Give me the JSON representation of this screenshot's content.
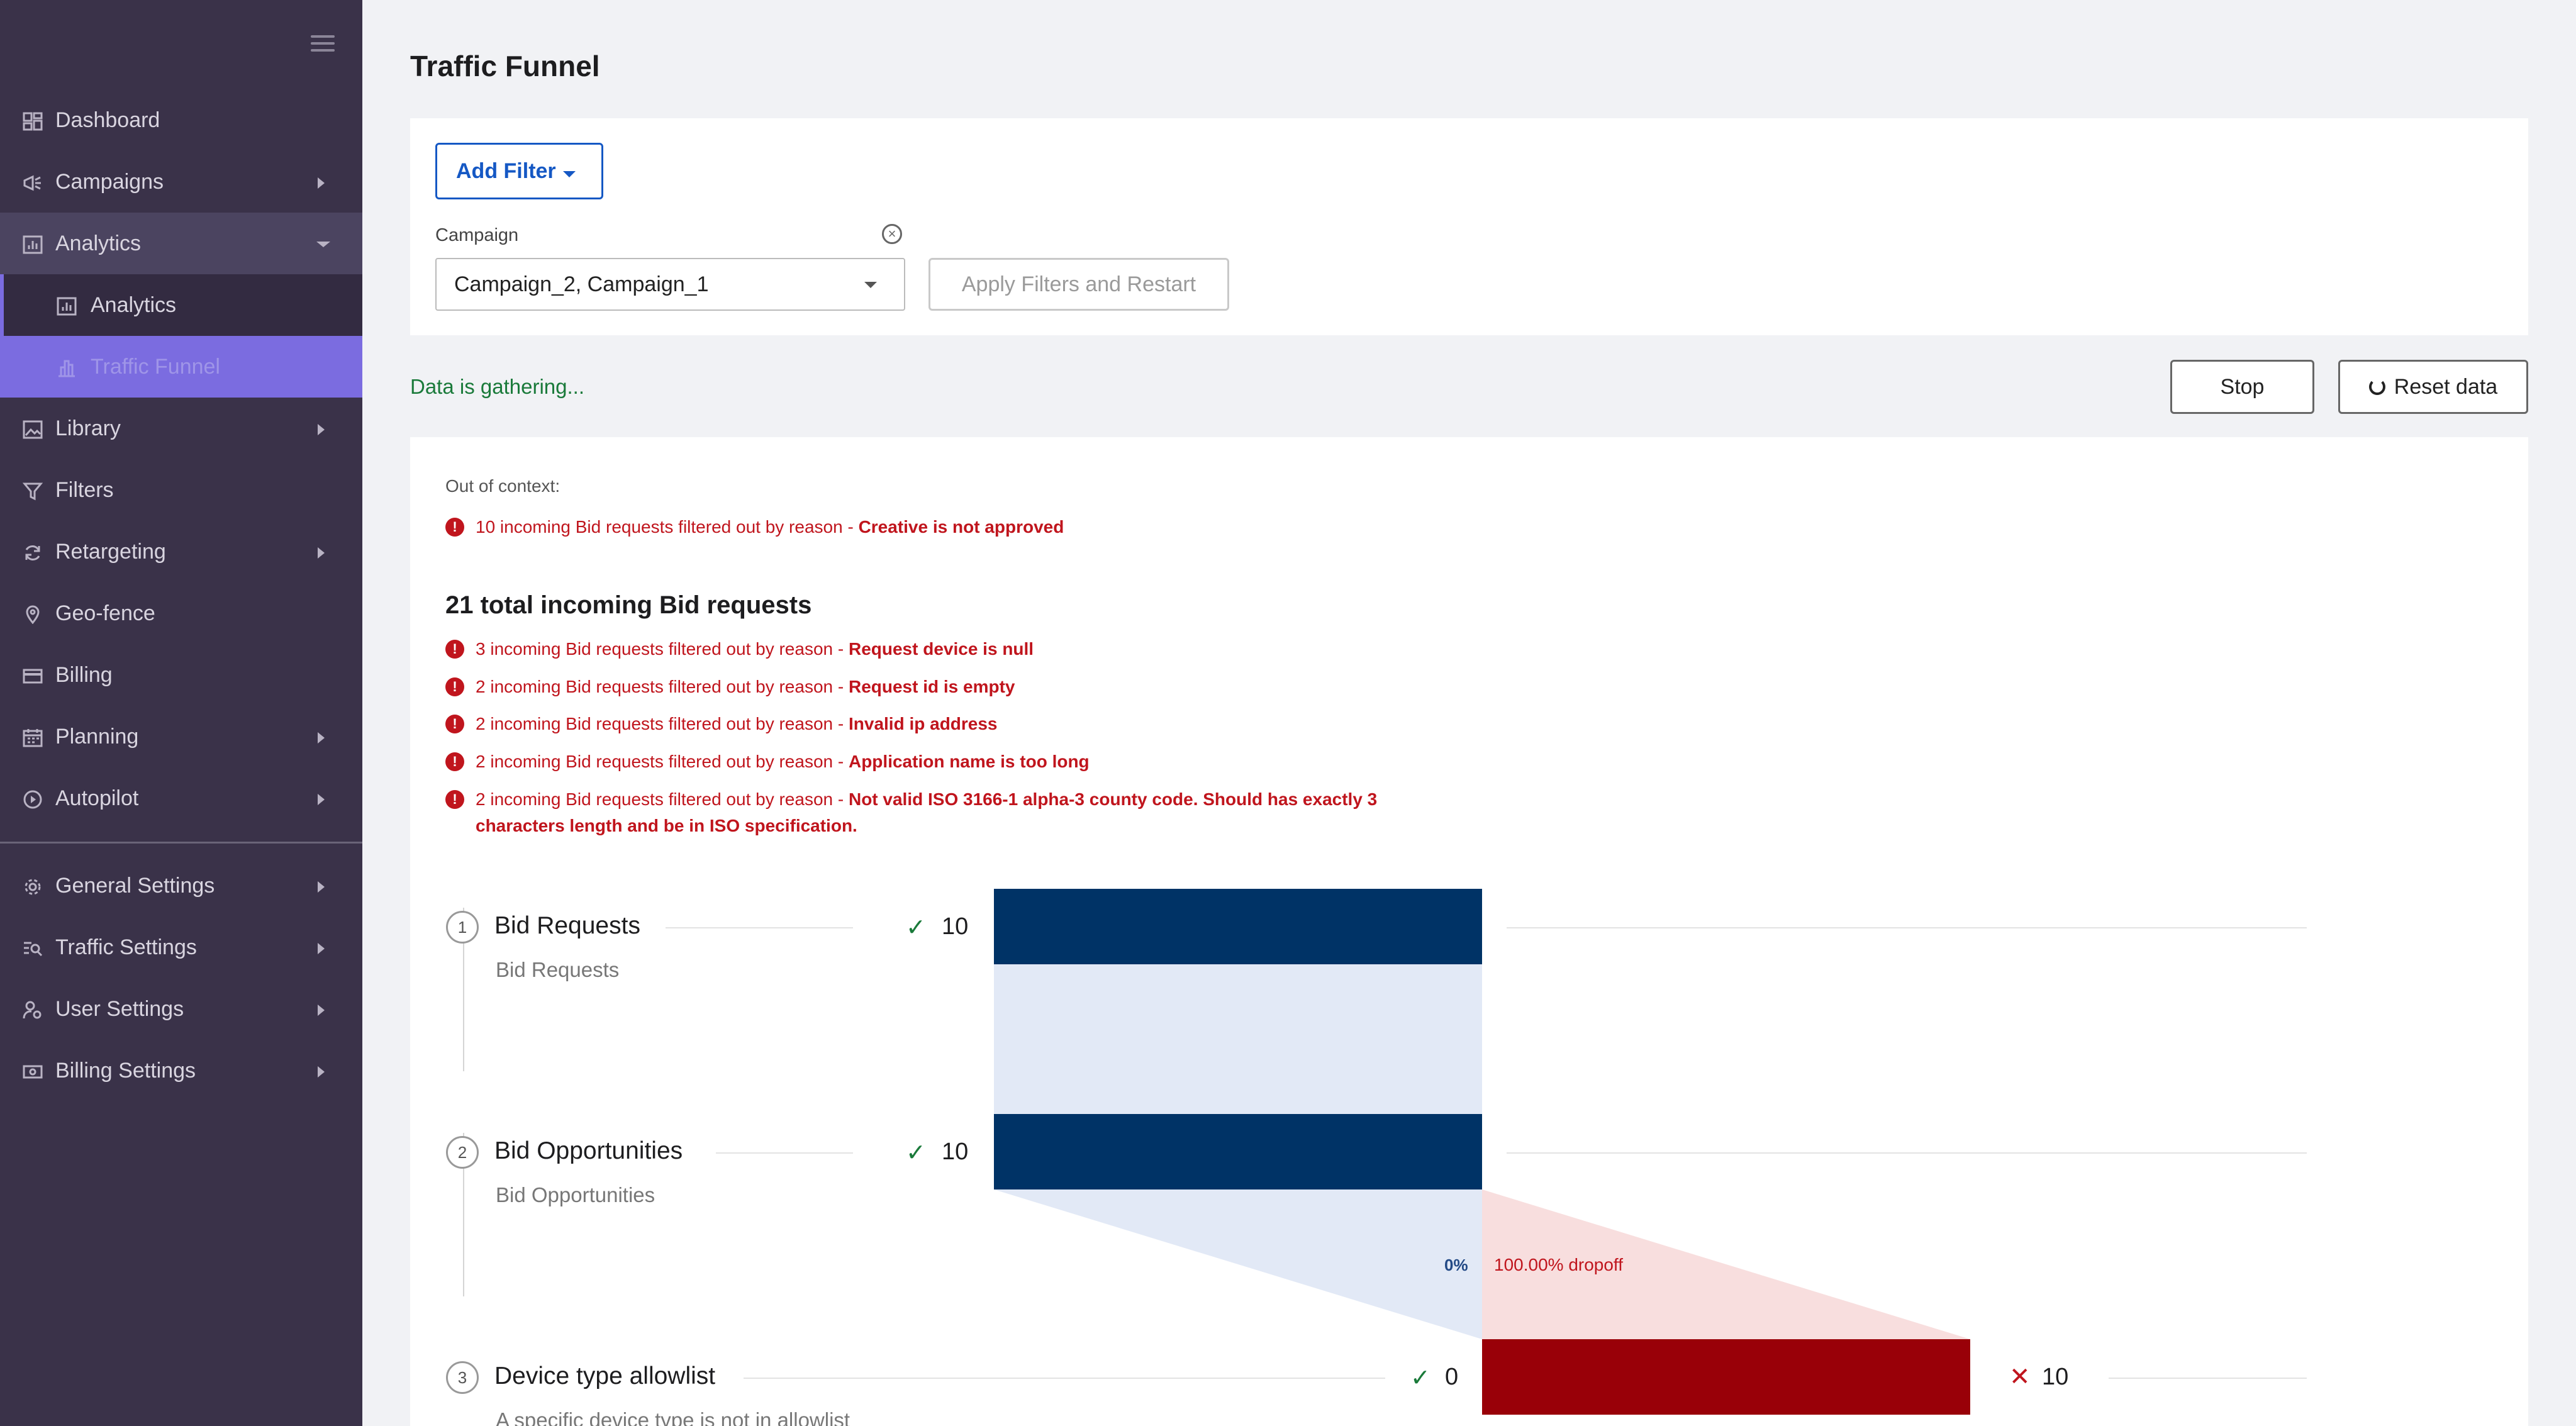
{
  "sidebar": {
    "items": [
      {
        "label": "Dashboard",
        "icon": "dashboard-icon"
      },
      {
        "label": "Campaigns",
        "icon": "megaphone-icon"
      },
      {
        "label": "Analytics",
        "icon": "bar-chart-icon"
      },
      {
        "label": "Analytics",
        "icon": "bar-chart-icon"
      },
      {
        "label": "Traffic Funnel",
        "icon": "funnel-chart-icon"
      },
      {
        "label": "Library",
        "icon": "image-icon"
      },
      {
        "label": "Filters",
        "icon": "filter-icon"
      },
      {
        "label": "Retargeting",
        "icon": "refresh-icon"
      },
      {
        "label": "Geo-fence",
        "icon": "map-pin-icon"
      },
      {
        "label": "Billing",
        "icon": "credit-card-icon"
      },
      {
        "label": "Planning",
        "icon": "calendar-icon"
      },
      {
        "label": "Autopilot",
        "icon": "play-circle-icon"
      },
      {
        "label": "General Settings",
        "icon": "gear-icon"
      },
      {
        "label": "Traffic Settings",
        "icon": "traffic-search-icon"
      },
      {
        "label": "User Settings",
        "icon": "user-gear-icon"
      },
      {
        "label": "Billing Settings",
        "icon": "money-icon"
      }
    ]
  },
  "page": {
    "title": "Traffic Funnel"
  },
  "filters": {
    "add_filter_label": "Add Filter",
    "campaign_label": "Campaign",
    "campaign_value": "Campaign_2,  Campaign_1",
    "apply_label": "Apply Filters and Restart"
  },
  "status": {
    "text": "Data is gathering...",
    "stop_label": "Stop",
    "reset_label": "Reset data"
  },
  "out_of_context": {
    "label": "Out of context:",
    "line_prefix": "10 incoming Bid requests filtered out by reason - ",
    "line_reason": "Creative is not approved"
  },
  "total": {
    "title": "21 total incoming Bid requests",
    "lines": [
      {
        "prefix": "3 incoming Bid requests filtered out by reason - ",
        "reason": "Request device is null"
      },
      {
        "prefix": "2 incoming Bid requests filtered out by reason - ",
        "reason": "Request id is empty"
      },
      {
        "prefix": "2 incoming Bid requests filtered out by reason - ",
        "reason": "Invalid ip address"
      },
      {
        "prefix": "2 incoming Bid requests filtered out by reason - ",
        "reason": "Application name is too long"
      },
      {
        "prefix": "2 incoming Bid requests filtered out by reason - ",
        "reason": "Not valid ISO 3166-1 alpha-3 county code. Should has exactly 3",
        "reason_cont": "characters length and be in ISO specification."
      }
    ]
  },
  "funnel": {
    "colors": {
      "pass": "#003366",
      "pass_light": "#e2e9f6",
      "drop": "#990008",
      "drop_light": "#f8dede"
    },
    "steps": [
      {
        "num": "1",
        "title": "Bid Requests",
        "subtitle": "Bid Requests",
        "passed": "10",
        "passed_value": 10
      },
      {
        "num": "2",
        "title": "Bid Opportunities",
        "subtitle": "Bid Opportunities",
        "passed": "10",
        "passed_value": 10
      },
      {
        "num": "3",
        "title": "Device type allowlist",
        "subtitle": "A specific device type is not in allowlist",
        "passed": "0",
        "passed_value": 0,
        "dropped": "10",
        "dropped_value": 10
      }
    ],
    "transition": {
      "pass_pct": "0%",
      "dropoff": "100.00% dropoff"
    }
  }
}
